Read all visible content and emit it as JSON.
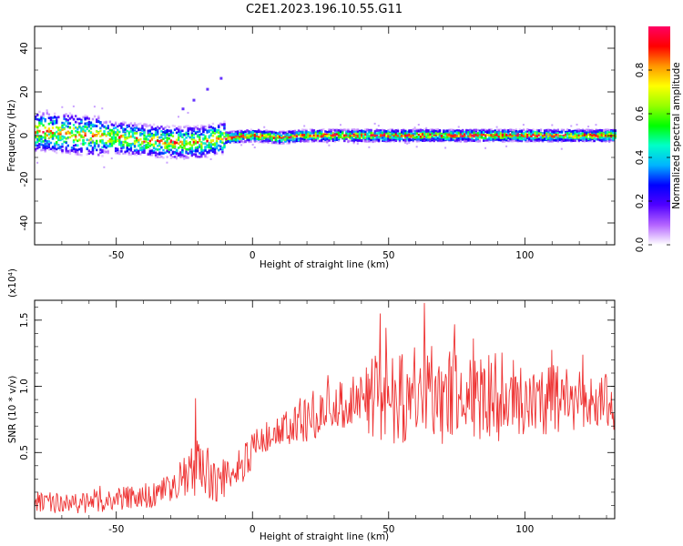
{
  "title": "C2E1.2023.196.10.55.G11",
  "chart_data": [
    {
      "type": "heatmap",
      "title": "C2E1.2023.196.10.55.G11",
      "xlabel": "Height of straight line (km)",
      "ylabel": "Frequency (Hz)",
      "xlim": [
        -80,
        133
      ],
      "ylim": [
        -50,
        50
      ],
      "xticks": [
        "-50",
        "0",
        "50",
        "100"
      ],
      "yticks": [
        "-40",
        "-20",
        "0",
        "20",
        "40"
      ],
      "center_frequency_profile": [
        {
          "x": -80,
          "y": 2
        },
        {
          "x": -70,
          "y": 1
        },
        {
          "x": -60,
          "y": 0
        },
        {
          "x": -50,
          "y": -1
        },
        {
          "x": -40,
          "y": -2
        },
        {
          "x": -30,
          "y": -3
        },
        {
          "x": -20,
          "y": -3
        },
        {
          "x": -10,
          "y": -1
        },
        {
          "x": 0,
          "y": 0
        },
        {
          "x": 10,
          "y": -1
        },
        {
          "x": 20,
          "y": 0
        },
        {
          "x": 40,
          "y": 0
        },
        {
          "x": 60,
          "y": 0
        },
        {
          "x": 80,
          "y": 0
        },
        {
          "x": 100,
          "y": 0
        },
        {
          "x": 133,
          "y": 0
        }
      ],
      "colorbar": {
        "label": "Normalized spectral amplitude",
        "range": [
          0,
          1
        ],
        "ticks": [
          "0.0",
          "0.2",
          "0.4",
          "0.6",
          "0.8"
        ],
        "colormap": [
          "#ffffff",
          "#b464ff",
          "#5000ff",
          "#0000ff",
          "#00b4ff",
          "#00ffc8",
          "#00ff00",
          "#96ff00",
          "#ffff00",
          "#ff9600",
          "#ff0000",
          "#ff0064"
        ]
      },
      "grid": false
    },
    {
      "type": "line",
      "xlabel": "Height of straight line (km)",
      "ylabel": "SNR (10 * v/v)",
      "yscale_label": "(x10⁴)",
      "xlim": [
        -80,
        133
      ],
      "ylim": [
        0,
        1.65
      ],
      "xticks": [
        "-50",
        "0",
        "50",
        "100"
      ],
      "yticks": [
        "0.5",
        "1.0",
        "1.5"
      ],
      "color": "#ee3333",
      "envelope": [
        {
          "x": -80,
          "mean": 0.12,
          "spread": 0.08
        },
        {
          "x": -60,
          "mean": 0.12,
          "spread": 0.08
        },
        {
          "x": -40,
          "mean": 0.17,
          "spread": 0.1
        },
        {
          "x": -30,
          "mean": 0.22,
          "spread": 0.12
        },
        {
          "x": -20,
          "mean": 0.38,
          "spread": 0.22
        },
        {
          "x": -12,
          "mean": 0.28,
          "spread": 0.18
        },
        {
          "x": -5,
          "mean": 0.4,
          "spread": 0.15
        },
        {
          "x": 5,
          "mean": 0.58,
          "spread": 0.15
        },
        {
          "x": 20,
          "mean": 0.74,
          "spread": 0.17
        },
        {
          "x": 30,
          "mean": 0.85,
          "spread": 0.17
        },
        {
          "x": 40,
          "mean": 0.9,
          "spread": 0.2
        },
        {
          "x": 45,
          "mean": 0.92,
          "spread": 0.35
        },
        {
          "x": 65,
          "mean": 0.93,
          "spread": 0.38
        },
        {
          "x": 85,
          "mean": 0.92,
          "spread": 0.35
        },
        {
          "x": 105,
          "mean": 0.9,
          "spread": 0.28
        },
        {
          "x": 133,
          "mean": 0.88,
          "spread": 0.22
        }
      ],
      "peaks": [
        {
          "x": 63,
          "y": 1.63
        },
        {
          "x": 47,
          "y": 1.55
        },
        {
          "x": -21,
          "y": 0.91
        }
      ],
      "grid": false
    }
  ]
}
